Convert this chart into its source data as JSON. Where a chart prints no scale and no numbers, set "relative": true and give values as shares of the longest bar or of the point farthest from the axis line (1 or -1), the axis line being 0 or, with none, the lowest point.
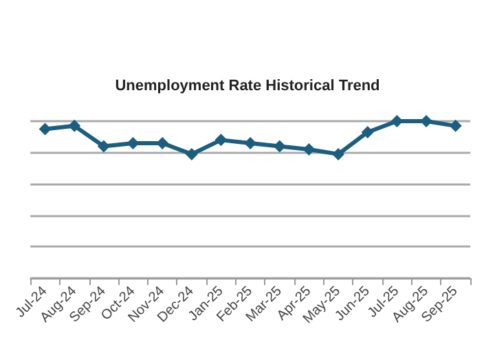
{
  "chart_data": {
    "type": "line",
    "title": "Unemployment Rate Historical Trend",
    "relative": true,
    "categories": [
      "Jul-24",
      "Aug-24",
      "Sep-24",
      "Oct-24",
      "Nov-24",
      "Dec-24",
      "Jan-25",
      "Feb-25",
      "Mar-25",
      "Apr-25",
      "May-25",
      "Jun-25",
      "Jul-25",
      "Aug-25",
      "Sep-25"
    ],
    "series": [
      {
        "color": "#1b5e80",
        "values": [
          0.95,
          0.97,
          0.84,
          0.86,
          0.86,
          0.79,
          0.88,
          0.86,
          0.84,
          0.82,
          0.79,
          0.93,
          1,
          1,
          0.97
        ]
      }
    ],
    "marker": "diamond",
    "grid": "y"
  }
}
